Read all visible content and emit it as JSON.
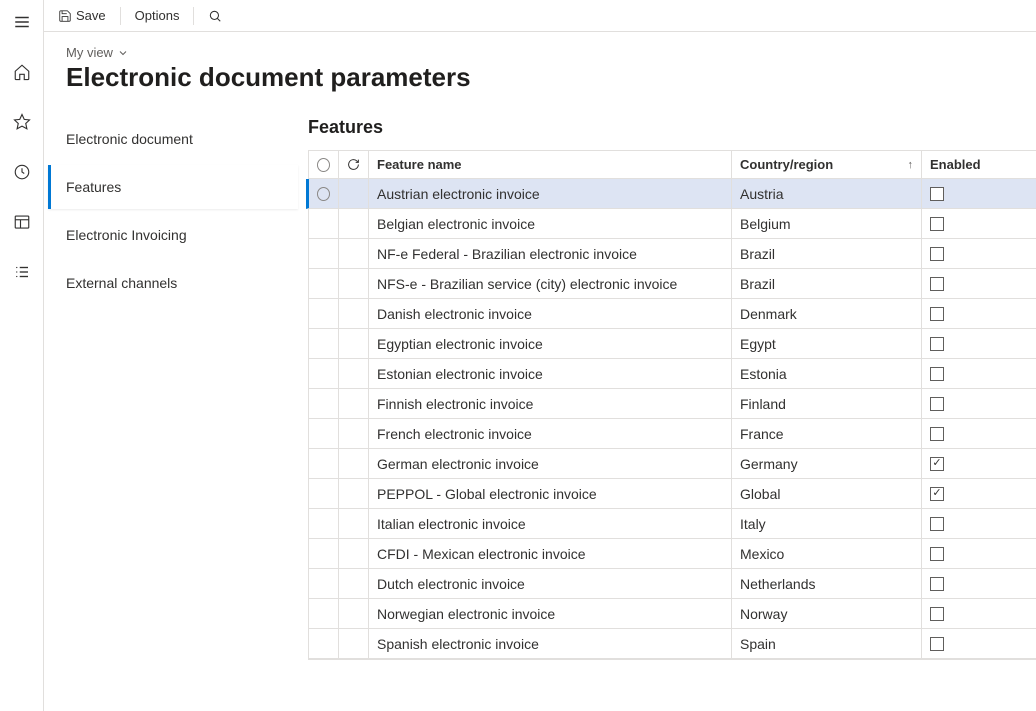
{
  "toolbar": {
    "save_label": "Save",
    "options_label": "Options"
  },
  "header": {
    "view_label": "My view",
    "page_title": "Electronic document parameters"
  },
  "side_nav": {
    "items": [
      {
        "label": "Electronic document",
        "active": false
      },
      {
        "label": "Features",
        "active": true
      },
      {
        "label": "Electronic Invoicing",
        "active": false
      },
      {
        "label": "External channels",
        "active": false
      }
    ]
  },
  "panel": {
    "title": "Features",
    "columns": {
      "feature_name": "Feature name",
      "country": "Country/region",
      "enabled": "Enabled"
    },
    "rows": [
      {
        "name": "Austrian electronic invoice",
        "country": "Austria",
        "enabled": false,
        "selected": true
      },
      {
        "name": "Belgian electronic invoice",
        "country": "Belgium",
        "enabled": false,
        "selected": false
      },
      {
        "name": "NF-e  Federal - Brazilian electronic invoice",
        "country": "Brazil",
        "enabled": false,
        "selected": false
      },
      {
        "name": "NFS-e - Brazilian service (city) electronic invoice",
        "country": "Brazil",
        "enabled": false,
        "selected": false
      },
      {
        "name": "Danish electronic invoice",
        "country": "Denmark",
        "enabled": false,
        "selected": false
      },
      {
        "name": "Egyptian electronic invoice",
        "country": "Egypt",
        "enabled": false,
        "selected": false
      },
      {
        "name": "Estonian electronic invoice",
        "country": "Estonia",
        "enabled": false,
        "selected": false
      },
      {
        "name": "Finnish electronic invoice",
        "country": "Finland",
        "enabled": false,
        "selected": false
      },
      {
        "name": "French electronic invoice",
        "country": "France",
        "enabled": false,
        "selected": false
      },
      {
        "name": "German electronic invoice",
        "country": "Germany",
        "enabled": true,
        "selected": false
      },
      {
        "name": "PEPPOL - Global electronic invoice",
        "country": "Global",
        "enabled": true,
        "selected": false
      },
      {
        "name": "Italian electronic invoice",
        "country": "Italy",
        "enabled": false,
        "selected": false
      },
      {
        "name": "CFDI - Mexican electronic invoice",
        "country": "Mexico",
        "enabled": false,
        "selected": false
      },
      {
        "name": "Dutch electronic invoice",
        "country": "Netherlands",
        "enabled": false,
        "selected": false
      },
      {
        "name": "Norwegian electronic invoice",
        "country": "Norway",
        "enabled": false,
        "selected": false
      },
      {
        "name": "Spanish electronic invoice",
        "country": "Spain",
        "enabled": false,
        "selected": false
      }
    ]
  },
  "colors": {
    "accent": "#0078d4",
    "row_selected_bg": "#dde4f3",
    "border": "#e1dfdd",
    "text": "#323130"
  }
}
